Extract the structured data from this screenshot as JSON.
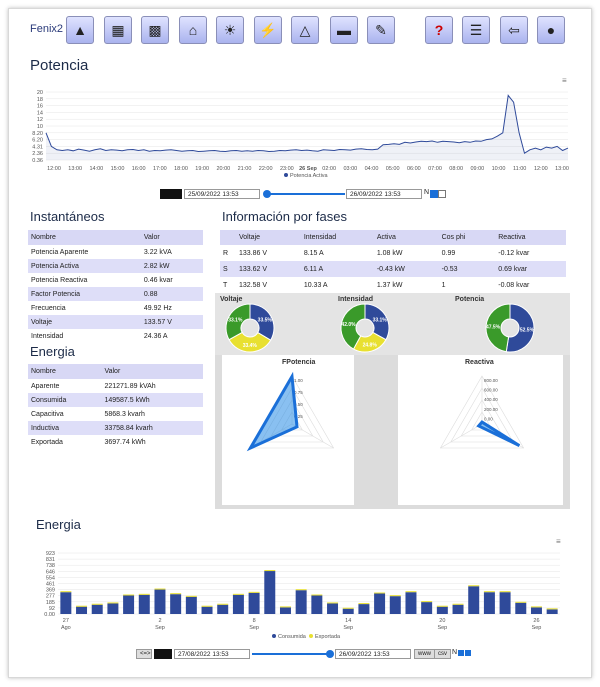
{
  "app": {
    "name": "Fenix2"
  },
  "toolbar": [
    {
      "name": "shapes-icon",
      "glyph": "▲"
    },
    {
      "name": "panel-icon",
      "glyph": "▦"
    },
    {
      "name": "calendar-grid-icon",
      "glyph": "▩"
    },
    {
      "name": "house-icon",
      "glyph": "⌂"
    },
    {
      "name": "sun-icon",
      "glyph": "☀"
    },
    {
      "name": "tower-icon",
      "glyph": "⚡"
    },
    {
      "name": "prism-icon",
      "glyph": "△"
    },
    {
      "name": "battery-icon",
      "glyph": "▬"
    },
    {
      "name": "edit-icon",
      "glyph": "✎"
    },
    {
      "name": "help-icon",
      "glyph": "?"
    },
    {
      "name": "report-icon",
      "glyph": "☰"
    },
    {
      "name": "exit-icon",
      "glyph": "⇦"
    },
    {
      "name": "user-icon",
      "glyph": "●"
    }
  ],
  "potencia": {
    "title": "Potencia",
    "menu": "≡",
    "chart_data": {
      "type": "line",
      "y_ticks": [
        "20",
        "18",
        "16",
        "14",
        "12",
        "10",
        "8.20",
        "6.20",
        "4.31",
        "2.36",
        "0.36"
      ],
      "x_ticks": [
        "12:00",
        "13:00",
        "14:00",
        "15:00",
        "16:00",
        "17:00",
        "18:00",
        "19:00",
        "20:00",
        "21:00",
        "22:00",
        "23:00",
        "26 Sep",
        "02:00",
        "03:00",
        "04:00",
        "05:00",
        "06:00",
        "07:00",
        "08:00",
        "09:00",
        "10:00",
        "11:00",
        "12:00",
        "13:00"
      ],
      "series": [
        {
          "name": "Potencia Activa",
          "values": [
            8,
            4,
            3,
            2.8,
            3,
            2.7,
            3.2,
            2.9,
            2.6,
            3,
            3.3,
            2.8,
            3,
            2.9,
            2.7,
            3,
            3.1,
            2.8,
            3,
            2.6,
            2.8,
            2.7,
            2.9,
            3,
            2.8,
            2.6,
            2.7,
            2.8,
            2.5,
            2.6,
            2.7,
            2.8,
            2.6,
            2.5,
            2.7,
            2.8,
            2.6,
            2.7,
            2.6,
            2.8,
            2.7,
            2.5,
            2.6,
            2.8,
            2.7,
            2.9,
            3,
            2.8,
            2.9,
            2.7,
            2.6,
            3,
            2.9,
            2.8,
            3.1,
            3,
            2.9,
            3.2,
            3.3,
            3.1,
            3,
            3.2,
            4.5,
            4.6,
            4.8,
            4.6,
            5.2,
            5,
            5.3,
            5.5,
            5.4,
            5.6,
            5.2,
            5.5,
            5.4,
            5.3,
            5.1,
            5.4,
            5.2,
            5.6,
            5.5,
            6,
            6.2,
            7,
            8,
            19,
            17,
            8,
            2,
            3,
            3.5,
            3,
            3.8,
            3.5,
            4,
            2.8,
            3.5
          ]
        }
      ]
    },
    "date_from": "25/09/2022 13:53",
    "date_to": "26/09/2022 13:53",
    "n_label": "N"
  },
  "instantaneos": {
    "title": "Instantáneos",
    "headers": [
      "Nombre",
      "Valor"
    ],
    "rows": [
      [
        "Potencia Aparente",
        "3.22 kVA"
      ],
      [
        "Potencia Activa",
        "2.82 kW"
      ],
      [
        "Potencia Reactiva",
        "0.46 kvar"
      ],
      [
        "Factor Potencia",
        "0.88"
      ],
      [
        "Frecuencia",
        "49.92 Hz"
      ],
      [
        "Voltaje",
        "133.57 V"
      ],
      [
        "Intensidad",
        "24.36 A"
      ]
    ]
  },
  "energia_tabla": {
    "title": "Energia",
    "headers": [
      "Nombre",
      "Valor"
    ],
    "rows": [
      [
        "Aparente",
        "221271.89 kVAh"
      ],
      [
        "Consumida",
        "149587.5 kWh"
      ],
      [
        "Capacitiva",
        "5868.3 kvarh"
      ],
      [
        "Inductiva",
        "33758.84 kvarh"
      ],
      [
        "Exportada",
        "3697.74 kWh"
      ]
    ]
  },
  "fases": {
    "title": "Información por fases",
    "headers": [
      "",
      "Voltaje",
      "Intensidad",
      "Activa",
      "Cos phi",
      "Reactiva"
    ],
    "rows": [
      [
        "R",
        "133.86 V",
        "8.15 A",
        "1.08 kW",
        "0.99",
        "-0.12 kvar"
      ],
      [
        "S",
        "133.62 V",
        "6.11 A",
        "-0.43 kW",
        "-0.53",
        "0.69 kvar"
      ],
      [
        "T",
        "132.58 V",
        "10.33 A",
        "1.37 kW",
        "1",
        "-0.08 kvar"
      ]
    ]
  },
  "donuts": [
    {
      "title": "Voltaje",
      "slices": [
        {
          "label": "33.5%",
          "value": 33.5,
          "color": "#2f4a9a"
        },
        {
          "label": "33.4%",
          "value": 33.4,
          "color": "#e8e030"
        },
        {
          "label": "33.1%",
          "value": 33.1,
          "color": "#3a9a2a"
        }
      ]
    },
    {
      "title": "Intensidad",
      "slices": [
        {
          "label": "33.1%",
          "value": 33.1,
          "color": "#2f4a9a"
        },
        {
          "label": "24.8%",
          "value": 24.8,
          "color": "#e8e030"
        },
        {
          "label": "42.0%",
          "value": 42.0,
          "color": "#3a9a2a"
        }
      ]
    },
    {
      "title": "Potencia",
      "slices": [
        {
          "label": "52.5%",
          "value": 52.5,
          "color": "#2f4a9a"
        },
        {
          "label": "",
          "value": 0,
          "color": "#e8e030"
        },
        {
          "label": "47.5%",
          "value": 47.5,
          "color": "#3a9a2a"
        }
      ]
    }
  ],
  "radar_fp": {
    "title": "FPotencia",
    "ticks": [
      "1.00",
      "0.75",
      "0.50",
      "0.25"
    ]
  },
  "radar_reactiva": {
    "title": "Reactiva",
    "ticks": [
      "800.00",
      "600.00",
      "400.00",
      "200.00",
      "0.00"
    ]
  },
  "energia_chart": {
    "title": "Energia",
    "menu": "≡",
    "chart_data": {
      "type": "bar",
      "y_ticks": [
        "923",
        "831",
        "738",
        "646",
        "554",
        "461",
        "369",
        "277",
        "185",
        "92",
        "0.00"
      ],
      "x_ticks": [
        {
          "d": "27",
          "m": "Ago"
        },
        {
          "d": "2",
          "m": "Sep"
        },
        {
          "d": "8",
          "m": "Sep"
        },
        {
          "d": "14",
          "m": "Sep"
        },
        {
          "d": "20",
          "m": "Sep"
        },
        {
          "d": "26",
          "m": "Sep"
        }
      ],
      "series": [
        {
          "name": "Consumida",
          "values": [
            330,
            110,
            140,
            160,
            280,
            290,
            370,
            300,
            260,
            110,
            140,
            290,
            320,
            650,
            100,
            360,
            280,
            160,
            80,
            150,
            310,
            270,
            330,
            180,
            110,
            140,
            420,
            330,
            330,
            170,
            100,
            70
          ]
        },
        {
          "name": "Exportada",
          "values": [
            5,
            3,
            2,
            4,
            3,
            3,
            2,
            3,
            4,
            2,
            3,
            2,
            3,
            2,
            2,
            3,
            4,
            3,
            2,
            3,
            3,
            2,
            2,
            3,
            3,
            2,
            3,
            2,
            3,
            2,
            3,
            2
          ]
        }
      ],
      "ylim": [
        0,
        923
      ]
    },
    "nav_prev": "<=>",
    "date_from": "27/08/2022 13:53",
    "date_to": "26/09/2022 13:53",
    "btn_www": "www",
    "btn_csv": "csv",
    "n_label": "N"
  },
  "colors": {
    "accent": "#2f4a9a",
    "export": "#e8e030",
    "line": "#2f4a9a"
  }
}
